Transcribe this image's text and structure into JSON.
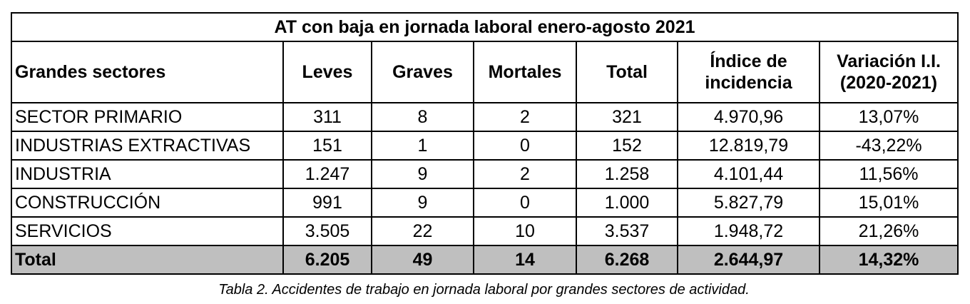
{
  "table": {
    "title": "AT con baja en jornada laboral enero-agosto 2021",
    "headers": {
      "sector": "Grandes sectores",
      "leves": "Leves",
      "graves": "Graves",
      "mortales": "Mortales",
      "total": "Total",
      "indice_line1": "Índice de",
      "indice_line2": "incidencia",
      "variacion_line1": "Variación I.I.",
      "variacion_line2": "(2020-2021)"
    },
    "rows": [
      {
        "sector": "SECTOR PRIMARIO",
        "leves": "311",
        "graves": "8",
        "mortales": "2",
        "total": "321",
        "indice": "4.970,96",
        "variacion": "13,07%"
      },
      {
        "sector": "INDUSTRIAS EXTRACTIVAS",
        "leves": "151",
        "graves": "1",
        "mortales": "0",
        "total": "152",
        "indice": "12.819,79",
        "variacion": "-43,22%"
      },
      {
        "sector": "INDUSTRIA",
        "leves": "1.247",
        "graves": "9",
        "mortales": "2",
        "total": "1.258",
        "indice": "4.101,44",
        "variacion": "11,56%"
      },
      {
        "sector": "CONSTRUCCIÓN",
        "leves": "991",
        "graves": "9",
        "mortales": "0",
        "total": "1.000",
        "indice": "5.827,79",
        "variacion": "15,01%"
      },
      {
        "sector": "SERVICIOS",
        "leves": "3.505",
        "graves": "22",
        "mortales": "10",
        "total": "3.537",
        "indice": "1.948,72",
        "variacion": "21,26%"
      }
    ],
    "total_row": {
      "sector": "Total",
      "leves": "6.205",
      "graves": "49",
      "mortales": "14",
      "total": "6.268",
      "indice": "2.644,97",
      "variacion": "14,32%"
    }
  },
  "caption": "Tabla 2. Accidentes de trabajo en jornada laboral por grandes sectores de actividad.",
  "colors": {
    "total_row_background": "#bfbfbf",
    "border": "#000000"
  }
}
